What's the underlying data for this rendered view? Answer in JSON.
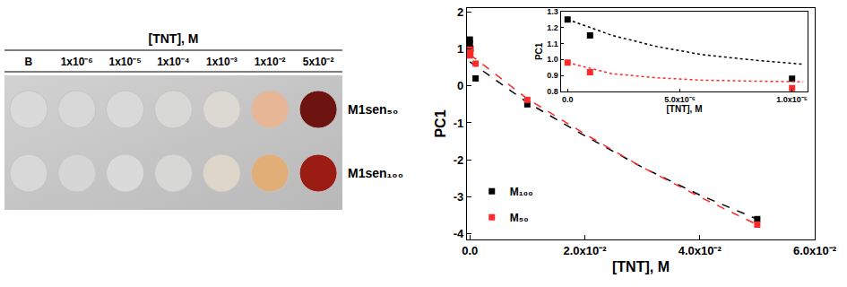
{
  "photo": {
    "header": "[TNT], M",
    "columns": [
      "B",
      "1x10⁻⁶",
      "1x10⁻⁵",
      "1x10⁻⁴",
      "1x10⁻³",
      "1x10⁻²",
      "5x10⁻²"
    ],
    "rows": [
      {
        "label": "M1sen₅₀",
        "colors": [
          "#dadada",
          "#d8d8d8",
          "#d9d9d9",
          "#d8d8d6",
          "#dcd8d2",
          "#e6b696",
          "#6e1410"
        ]
      },
      {
        "label": "M1sen₁₀₀",
        "colors": [
          "#d8d8d8",
          "#d6d6d6",
          "#dadada",
          "#d7d7d5",
          "#ded6c8",
          "#e2ae78",
          "#9a1c12"
        ]
      }
    ]
  },
  "chart_data": [
    {
      "type": "scatter",
      "xlabel": "[TNT], M",
      "ylabel": "PC1",
      "x": [
        0,
        1e-06,
        1e-05,
        0.0001,
        0.001,
        0.01,
        0.05
      ],
      "series": [
        {
          "name": "M₁₀₀",
          "color": "#000000",
          "marker": "square",
          "line_style": "dash",
          "values": [
            1.25,
            1.15,
            0.88,
            1.0,
            0.2,
            -0.5,
            -3.6
          ],
          "fit_x": [
            0,
            0.01,
            0.02,
            0.03,
            0.04,
            0.05
          ],
          "fit": [
            0.65,
            -0.45,
            -1.35,
            -2.2,
            -2.95,
            -3.6
          ]
        },
        {
          "name": "M₅₀",
          "color": "#ff2a2a",
          "marker": "square",
          "line_style": "dash",
          "values": [
            0.98,
            0.92,
            0.82,
            0.9,
            0.6,
            -0.38,
            -3.75
          ],
          "fit_x": [
            0,
            0.01,
            0.02,
            0.03,
            0.04,
            0.05
          ],
          "fit": [
            0.85,
            -0.35,
            -1.3,
            -2.2,
            -3.0,
            -3.75
          ]
        }
      ],
      "xlim": [
        -0.0005,
        0.06
      ],
      "xticks": [
        {
          "value": 0,
          "label": "0.0"
        },
        {
          "value": 0.02,
          "label": "2.0x10⁻²"
        },
        {
          "value": 0.04,
          "label": "4.0x10⁻²"
        },
        {
          "value": 0.06,
          "label": "6.0x10⁻²"
        }
      ],
      "ylim": [
        -4.15,
        2.1
      ],
      "yticks": [
        -4,
        -3,
        -2,
        -1,
        0,
        1,
        2
      ],
      "legend": "lower left",
      "grid": false
    },
    {
      "type": "scatter",
      "xlabel": "[TNT], M",
      "ylabel": "PC1",
      "x": [
        0,
        1e-06,
        1e-05
      ],
      "series": [
        {
          "color": "#000000",
          "marker": "square",
          "line_style": "dot",
          "values": [
            1.25,
            1.15,
            0.88
          ],
          "fit_x": [
            0,
            2e-06,
            4e-06,
            6e-06,
            8e-06,
            1.05e-05
          ],
          "fit": [
            1.25,
            1.15,
            1.08,
            1.03,
            1.0,
            0.97
          ]
        },
        {
          "color": "#ff2a2a",
          "marker": "square",
          "line_style": "dot",
          "values": [
            0.98,
            0.92,
            0.82
          ],
          "fit_x": [
            0,
            2e-06,
            4e-06,
            6e-06,
            8e-06,
            1.05e-05
          ],
          "fit": [
            0.98,
            0.91,
            0.885,
            0.87,
            0.865,
            0.86
          ]
        }
      ],
      "xlim": [
        -3e-07,
        1.07e-05
      ],
      "xticks": [
        {
          "value": 0,
          "label": "0.0"
        },
        {
          "value": 5e-06,
          "label": "5.0x10⁻⁶"
        },
        {
          "value": 1e-05,
          "label": "1.0x10⁻⁵"
        }
      ],
      "ylim": [
        0.8,
        1.3
      ],
      "yticks": [
        0.8,
        0.9,
        {
          "value": 1.0,
          "label": "1.0"
        },
        1.1,
        1.2,
        1.3
      ],
      "grid": false
    }
  ]
}
